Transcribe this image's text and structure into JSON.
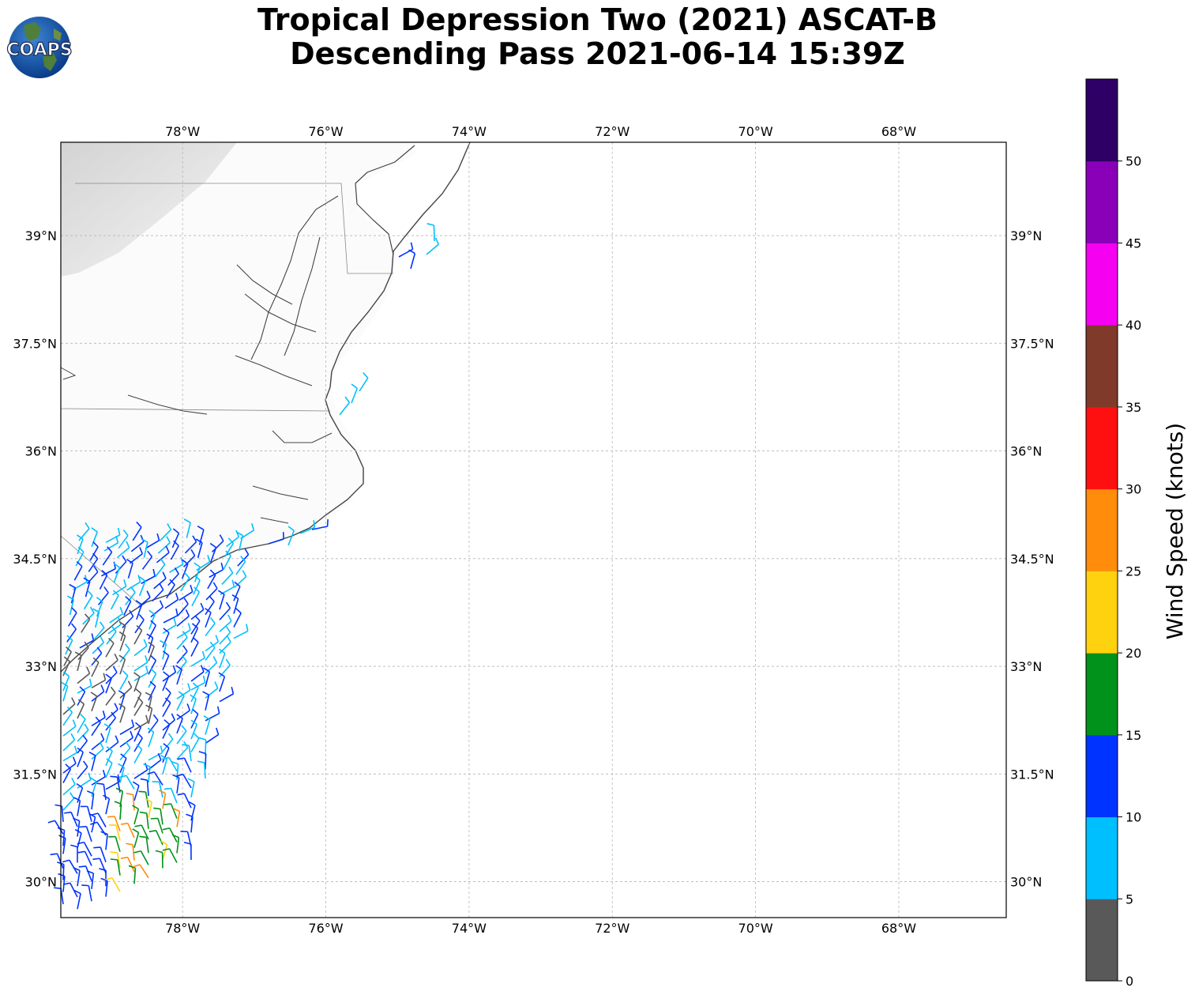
{
  "title": {
    "line1": "Tropical Depression Two (2021) ASCAT-B",
    "line2": "Descending Pass 2021-06-14 15:39Z"
  },
  "logo": {
    "text": "COAPS",
    "icon": "globe-logo-icon"
  },
  "map": {
    "lon_ticks": [
      "78°W",
      "76°W",
      "74°W",
      "72°W",
      "70°W",
      "68°W"
    ],
    "lat_ticks": [
      "39°N",
      "37.5°N",
      "36°N",
      "34.5°N",
      "33°N",
      "31.5°N",
      "30°N"
    ],
    "extent": {
      "lon_min": -79.7,
      "lon_max": -66.5,
      "lat_min": 29.5,
      "lat_max": 40.3
    },
    "land_color": "#fbfbfb",
    "coast_color": "#444444",
    "grid": "dashed"
  },
  "colorbar": {
    "label": "Wind Speed (knots)",
    "ticks": [
      "0",
      "5",
      "10",
      "15",
      "20",
      "25",
      "30",
      "35",
      "40",
      "45",
      "50"
    ],
    "colors": [
      "#595959",
      "#00bfff",
      "#0033ff",
      "#00921a",
      "#ffd20f",
      "#ff8c0a",
      "#ff1010",
      "#803a2a",
      "#f500f0",
      "#8a00b8",
      "#2e0066"
    ]
  }
}
